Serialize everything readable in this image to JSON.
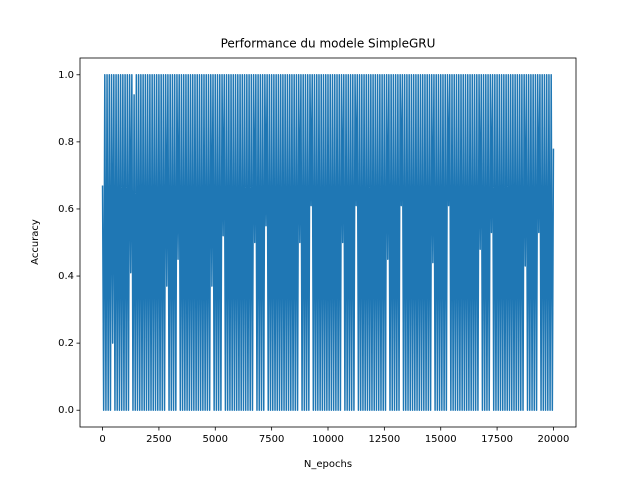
{
  "chart_data": {
    "type": "line",
    "title": "Performance du modele SimpleGRU",
    "xlabel": "N_epochs",
    "ylabel": "Accuracy",
    "xlim": [
      -1000,
      21000
    ],
    "ylim": [
      -0.05,
      1.05
    ],
    "xticks": [
      0,
      2500,
      5000,
      7500,
      10000,
      12500,
      15000,
      17500,
      20000
    ],
    "yticks": [
      {
        "value": 0,
        "label": "0.0"
      },
      0.2,
      0.4,
      0.6,
      0.8,
      {
        "value": 1,
        "label": "1.0"
      }
    ],
    "grid": false,
    "series": [
      {
        "color": "#1f77b4",
        "x": [
          0,
          50,
          100,
          150,
          200,
          250,
          300,
          350,
          400,
          450,
          500,
          550,
          600,
          650,
          700,
          750,
          800,
          850,
          900,
          950,
          1000,
          1050,
          1100,
          1150,
          1200,
          1250,
          1300,
          1350,
          1400,
          1450,
          1500,
          1550,
          1600,
          1650,
          1700,
          1750,
          1800,
          1850,
          1900,
          1950,
          2000,
          2050,
          2100,
          2150,
          2200,
          2250,
          2300,
          2350,
          2400,
          2450,
          2500,
          2550,
          2600,
          2650,
          2700,
          2750,
          2800,
          2850,
          2900,
          2950,
          3000,
          3050,
          3100,
          3150,
          3200,
          3250,
          3300,
          3350,
          3400,
          3450,
          3500,
          3550,
          3600,
          3650,
          3700,
          3750,
          3800,
          3850,
          3900,
          3950,
          4000,
          4050,
          4100,
          4150,
          4200,
          4250,
          4300,
          4350,
          4400,
          4450,
          4500,
          4550,
          4600,
          4650,
          4700,
          4750,
          4800,
          4850,
          4900,
          4950,
          5000,
          5050,
          5100,
          5150,
          5200,
          5250,
          5300,
          5350,
          5400,
          5450,
          5500,
          5550,
          5600,
          5650,
          5700,
          5750,
          5800,
          5850,
          5900,
          5950,
          6000,
          6050,
          6100,
          6150,
          6200,
          6250,
          6300,
          6350,
          6400,
          6450,
          6500,
          6550,
          6600,
          6650,
          6700,
          6750,
          6800,
          6850,
          6900,
          6950,
          7000,
          7050,
          7100,
          7150,
          7200,
          7250,
          7300,
          7350,
          7400,
          7450,
          7500,
          7550,
          7600,
          7650,
          7700,
          7750,
          7800,
          7850,
          7900,
          7950,
          8000,
          8050,
          8100,
          8150,
          8200,
          8250,
          8300,
          8350,
          8400,
          8450,
          8500,
          8550,
          8600,
          8650,
          8700,
          8750,
          8800,
          8850,
          8900,
          8950,
          9000,
          9050,
          9100,
          9150,
          9200,
          9250,
          9300,
          9350,
          9400,
          9450,
          9500,
          9550,
          9600,
          9650,
          9700,
          9750,
          9800,
          9850,
          9900,
          9950,
          10000,
          10050,
          10100,
          10150,
          10200,
          10250,
          10300,
          10350,
          10400,
          10450,
          10500,
          10550,
          10600,
          10650,
          10700,
          10750,
          10800,
          10850,
          10900,
          10950,
          11000,
          11050,
          11100,
          11150,
          11200,
          11250,
          11300,
          11350,
          11400,
          11450,
          11500,
          11550,
          11600,
          11650,
          11700,
          11750,
          11800,
          11850,
          11900,
          11950,
          12000,
          12050,
          12100,
          12150,
          12200,
          12250,
          12300,
          12350,
          12400,
          12450,
          12500,
          12550,
          12600,
          12650,
          12700,
          12750,
          12800,
          12850,
          12900,
          12950,
          13000,
          13050,
          13100,
          13150,
          13200,
          13250,
          13300,
          13350,
          13400,
          13450,
          13500,
          13550,
          13600,
          13650,
          13700,
          13750,
          13800,
          13850,
          13900,
          13950,
          14000,
          14050,
          14100,
          14150,
          14200,
          14250,
          14300,
          14350,
          14400,
          14450,
          14500,
          14550,
          14600,
          14650,
          14700,
          14750,
          14800,
          14850,
          14900,
          14950,
          15000,
          15050,
          15100,
          15150,
          15200,
          15250,
          15300,
          15350,
          15400,
          15450,
          15500,
          15550,
          15600,
          15650,
          15700,
          15750,
          15800,
          15850,
          15900,
          15950,
          16000,
          16050,
          16100,
          16150,
          16200,
          16250,
          16300,
          16350,
          16400,
          16450,
          16500,
          16550,
          16600,
          16650,
          16700,
          16750,
          16800,
          16850,
          16900,
          16950,
          17000,
          17050,
          17100,
          17150,
          17200,
          17250,
          17300,
          17350,
          17400,
          17450,
          17500,
          17550,
          17600,
          17650,
          17700,
          17750,
          17800,
          17850,
          17900,
          17950,
          18000,
          18050,
          18100,
          18150,
          18200,
          18250,
          18300,
          18350,
          18400,
          18450,
          18500,
          18550,
          18600,
          18650,
          18700,
          18750,
          18800,
          18850,
          18900,
          18950,
          19000,
          19050,
          19100,
          19150,
          19200,
          19250,
          19300,
          19350,
          19400,
          19450,
          19500,
          19550,
          19600,
          19650,
          19700,
          19750,
          19800,
          19850,
          19900,
          19950,
          20000
        ],
        "values": [
          0.67,
          0,
          1,
          0,
          1,
          0,
          1,
          0,
          1,
          0.2,
          1,
          0,
          1,
          0,
          1,
          0,
          1,
          0,
          1,
          0,
          1,
          0,
          1,
          0,
          1,
          0.41,
          1,
          0,
          0.94,
          0,
          1,
          0,
          1,
          0,
          1,
          0,
          1,
          0,
          1,
          0,
          1,
          0,
          1,
          0,
          1,
          0,
          1,
          0,
          1,
          0,
          1,
          0,
          1,
          0,
          1,
          0,
          1,
          0.37,
          1,
          0,
          1,
          0,
          1,
          0,
          1,
          0,
          1,
          0.45,
          1,
          0,
          1,
          0,
          1,
          0,
          1,
          0,
          1,
          0,
          1,
          0,
          1,
          0,
          1,
          0,
          1,
          0,
          1,
          0,
          1,
          0,
          1,
          0,
          1,
          0,
          1,
          0,
          1,
          0.37,
          1,
          0,
          1,
          0,
          1,
          0,
          1,
          0,
          1,
          0.52,
          1,
          0,
          1,
          0,
          1,
          0,
          1,
          0,
          1,
          0,
          1,
          0,
          1,
          0,
          1,
          0,
          1,
          0,
          1,
          0,
          1,
          0,
          1,
          0,
          1,
          0,
          1,
          0.5,
          1,
          0,
          1,
          0,
          1,
          0,
          1,
          0,
          1,
          0.55,
          1,
          0,
          1,
          0,
          1,
          0,
          1,
          0,
          1,
          0,
          1,
          0,
          1,
          0,
          1,
          0,
          1,
          0,
          1,
          0,
          1,
          0,
          1,
          0,
          1,
          0,
          1,
          0,
          1,
          0.5,
          1,
          0,
          1,
          0,
          1,
          0,
          1,
          0,
          1,
          0.61,
          1,
          0,
          1,
          0,
          1,
          0,
          1,
          0,
          1,
          0,
          1,
          0,
          1,
          0,
          1,
          0,
          1,
          0,
          1,
          0,
          1,
          0,
          1,
          0,
          1,
          0,
          1,
          0.5,
          1,
          0,
          1,
          0,
          1,
          0,
          1,
          0,
          1,
          0,
          1,
          0.61,
          1,
          0,
          1,
          0,
          1,
          0,
          1,
          0,
          1,
          0,
          1,
          0,
          1,
          0,
          1,
          0,
          1,
          0,
          1,
          0,
          1,
          0,
          1,
          0,
          1,
          0,
          1,
          0.45,
          1,
          0,
          1,
          0,
          1,
          0,
          1,
          0,
          1,
          0,
          1,
          0.61,
          1,
          0,
          1,
          0,
          1,
          0,
          1,
          0,
          1,
          0,
          1,
          0,
          1,
          0,
          1,
          0,
          1,
          0,
          1,
          0,
          1,
          0,
          1,
          0,
          1,
          0,
          1,
          0.44,
          1,
          0,
          1,
          0,
          1,
          0,
          1,
          0,
          1,
          0,
          1,
          0,
          1,
          0.61,
          1,
          0,
          1,
          0,
          1,
          0,
          1,
          0,
          1,
          0,
          1,
          0,
          1,
          0,
          1,
          0,
          1,
          0,
          1,
          0,
          1,
          0,
          1,
          0,
          1,
          0,
          1,
          0.48,
          1,
          0,
          1,
          0,
          1,
          0,
          1,
          0,
          1,
          0.53,
          1,
          0,
          1,
          0,
          1,
          0,
          1,
          0,
          1,
          0,
          1,
          0,
          1,
          0,
          1,
          0,
          1,
          0,
          1,
          0,
          1,
          0,
          1,
          0,
          1,
          0,
          1,
          0,
          1,
          0.43,
          1,
          0,
          1,
          0,
          1,
          0,
          1,
          0,
          1,
          0,
          1,
          0.53,
          1,
          0,
          1,
          0,
          1,
          0,
          1,
          0,
          1,
          0,
          1,
          0,
          0.78
        ]
      }
    ]
  }
}
